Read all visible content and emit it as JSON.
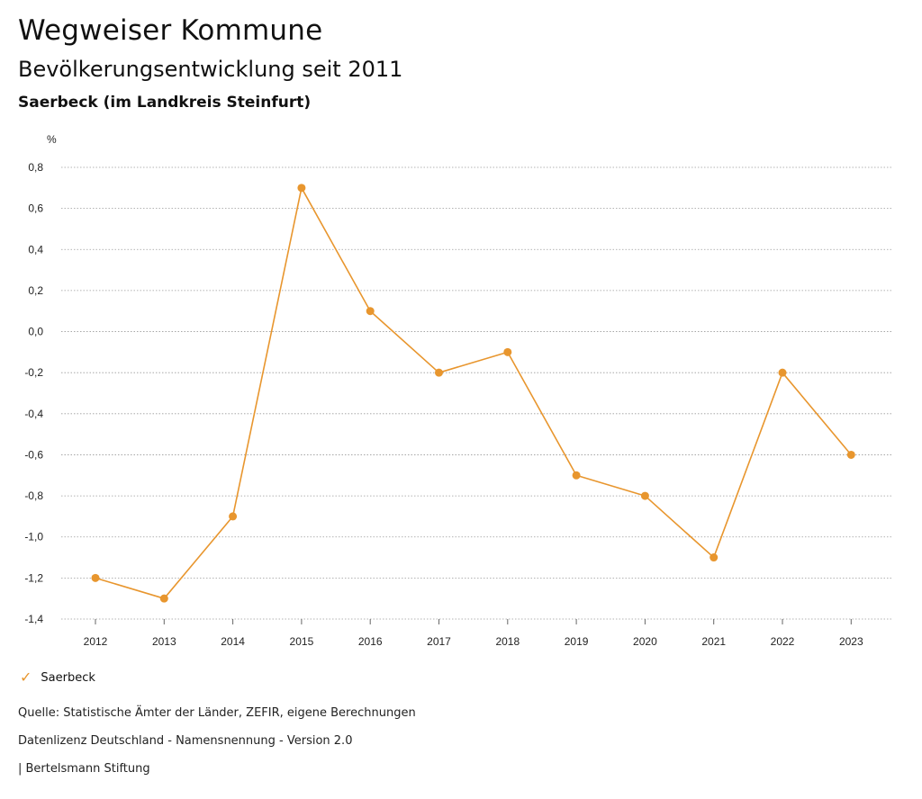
{
  "header": {
    "title": "Wegweiser Kommune",
    "subtitle": "Bevölkerungsentwicklung seit 2011",
    "region": "Saerbeck (im Landkreis Steinfurt)"
  },
  "chart_data": {
    "type": "line",
    "ylabel": "%",
    "x": [
      "2012",
      "2013",
      "2014",
      "2015",
      "2016",
      "2017",
      "2018",
      "2019",
      "2020",
      "2021",
      "2022",
      "2023"
    ],
    "series": [
      {
        "name": "Saerbeck",
        "values": [
          -1.2,
          -1.3,
          -0.9,
          0.7,
          0.1,
          -0.2,
          -0.1,
          -0.7,
          -0.8,
          -1.1,
          -0.2,
          -0.6
        ]
      }
    ],
    "ylim": [
      -1.4,
      0.8
    ],
    "yticks": [
      0.8,
      0.6,
      0.4,
      0.2,
      0.0,
      -0.2,
      -0.4,
      -0.6,
      -0.8,
      -1.0,
      -1.2,
      -1.4
    ],
    "ytick_labels": [
      "0,8",
      "0,6",
      "0,4",
      "0,2",
      "0,0",
      "-0,2",
      "-0,4",
      "-0,6",
      "-0,8",
      "-1,0",
      "-1,2",
      "-1,4"
    ],
    "grid": true,
    "color": "#e8962e",
    "legend_position": "bottom-left"
  },
  "legend": {
    "label": "Saerbeck",
    "icon": "check-icon"
  },
  "footer": {
    "source": "Quelle: Statistische Ämter der Länder, ZEFIR, eigene Berechnungen",
    "license": "Datenlizenz Deutschland - Namensnennung - Version 2.0",
    "publisher": "| Bertelsmann Stiftung"
  }
}
